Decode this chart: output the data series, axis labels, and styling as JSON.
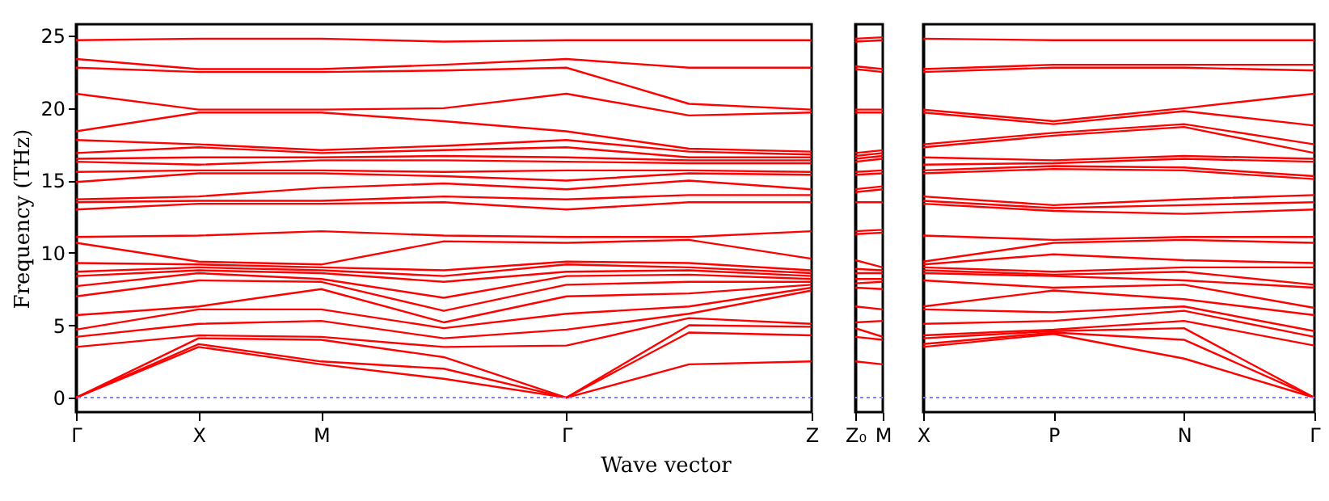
{
  "chart_data": [
    {
      "type": "line",
      "ylabel": "Frequency (THz)",
      "xlabel": "Wave vector",
      "categories": [
        "Γ",
        "X",
        "M",
        null,
        "Γ",
        null,
        "Z"
      ],
      "ylim": [
        -1,
        25.8
      ],
      "yticks": [
        0,
        5,
        10,
        15,
        20,
        25
      ],
      "ref_lines": [
        {
          "axis": "y",
          "value": 0,
          "color": "#8080ff",
          "line_style": "dotted"
        }
      ],
      "series": [
        {
          "color": "#ff0000",
          "values": [
            0,
            3.5,
            2.3,
            1.3,
            0,
            2.3,
            2.5
          ]
        },
        {
          "color": "#ff0000",
          "values": [
            0,
            3.7,
            2.5,
            2.0,
            0,
            4.5,
            4.3
          ]
        },
        {
          "color": "#ff0000",
          "values": [
            0,
            4.1,
            4.0,
            2.8,
            0,
            5.0,
            4.9
          ]
        },
        {
          "color": "#ff0000",
          "values": [
            3.5,
            4.3,
            4.2,
            3.5,
            3.6,
            5.5,
            5.1
          ]
        },
        {
          "color": "#ff0000",
          "values": [
            4.2,
            5.1,
            5.3,
            4.1,
            4.7,
            5.8,
            7.4
          ]
        },
        {
          "color": "#ff0000",
          "values": [
            4.7,
            6.1,
            6.1,
            4.8,
            5.8,
            6.3,
            7.6
          ]
        },
        {
          "color": "#ff0000",
          "values": [
            5.7,
            6.3,
            7.5,
            5.2,
            7.0,
            7.2,
            7.8
          ]
        },
        {
          "color": "#ff0000",
          "values": [
            7.0,
            8.1,
            8.0,
            6.0,
            7.8,
            8.0,
            8.0
          ]
        },
        {
          "color": "#ff0000",
          "values": [
            7.7,
            8.6,
            8.2,
            6.9,
            8.4,
            8.5,
            8.2
          ]
        },
        {
          "color": "#ff0000",
          "values": [
            8.4,
            8.8,
            8.6,
            8.0,
            8.7,
            8.8,
            8.4
          ]
        },
        {
          "color": "#ff0000",
          "values": [
            8.7,
            9.0,
            8.8,
            8.4,
            9.2,
            9.0,
            8.6
          ]
        },
        {
          "color": "#ff0000",
          "values": [
            9.3,
            9.2,
            9.0,
            8.8,
            9.4,
            9.3,
            8.8
          ]
        },
        {
          "color": "#ff0000",
          "values": [
            10.7,
            9.4,
            9.2,
            10.8,
            10.7,
            10.9,
            9.6
          ]
        },
        {
          "color": "#ff0000",
          "values": [
            11.1,
            11.2,
            11.5,
            11.2,
            11.1,
            11.1,
            11.5
          ]
        },
        {
          "color": "#ff0000",
          "values": [
            13.0,
            13.4,
            13.4,
            13.5,
            13.0,
            13.5,
            13.5
          ]
        },
        {
          "color": "#ff0000",
          "values": [
            13.5,
            13.6,
            13.6,
            13.9,
            13.7,
            14.0,
            14.0
          ]
        },
        {
          "color": "#ff0000",
          "values": [
            13.7,
            13.9,
            14.5,
            14.8,
            14.4,
            15.0,
            14.4
          ]
        },
        {
          "color": "#ff0000",
          "values": [
            14.9,
            15.5,
            15.5,
            15.3,
            15.0,
            15.5,
            15.4
          ]
        },
        {
          "color": "#ff0000",
          "values": [
            15.6,
            15.7,
            15.7,
            15.6,
            15.7,
            15.7,
            15.6
          ]
        },
        {
          "color": "#ff0000",
          "values": [
            16.3,
            16.1,
            16.4,
            16.4,
            16.3,
            16.2,
            16.2
          ]
        },
        {
          "color": "#ff0000",
          "values": [
            16.5,
            16.6,
            16.6,
            16.7,
            16.6,
            16.4,
            16.4
          ]
        },
        {
          "color": "#ff0000",
          "values": [
            16.9,
            17.3,
            16.9,
            17.1,
            17.3,
            16.6,
            16.6
          ]
        },
        {
          "color": "#ff0000",
          "values": [
            17.8,
            17.5,
            17.1,
            17.4,
            17.8,
            17.0,
            16.8
          ]
        },
        {
          "color": "#ff0000",
          "values": [
            18.4,
            19.7,
            19.7,
            19.1,
            18.4,
            17.2,
            17.0
          ]
        },
        {
          "color": "#ff0000",
          "values": [
            21.0,
            19.9,
            19.9,
            20.0,
            21.0,
            19.5,
            19.7
          ]
        },
        {
          "color": "#ff0000",
          "values": [
            22.8,
            22.5,
            22.5,
            22.6,
            22.8,
            20.3,
            19.9
          ]
        },
        {
          "color": "#ff0000",
          "values": [
            23.4,
            22.7,
            22.7,
            23.0,
            23.4,
            22.8,
            22.8
          ]
        },
        {
          "color": "#ff0000",
          "values": [
            24.7,
            24.8,
            24.8,
            24.6,
            24.7,
            24.7,
            24.7
          ]
        }
      ]
    },
    {
      "type": "line",
      "tick_labels": "x",
      "categories": [
        "Z₀",
        "M"
      ],
      "ylim": [
        -1,
        25.8
      ],
      "yticks": [
        0,
        5,
        10,
        15,
        20,
        25
      ],
      "ref_lines": [
        {
          "axis": "y",
          "value": 0,
          "color": "#8080ff",
          "line_style": "dotted"
        }
      ],
      "series": [
        {
          "color": "#ff0000",
          "values": [
            2.5,
            2.3
          ]
        },
        {
          "color": "#ff0000",
          "values": [
            4.2,
            4.0
          ]
        },
        {
          "color": "#ff0000",
          "values": [
            4.8,
            4.2
          ]
        },
        {
          "color": "#ff0000",
          "values": [
            5.2,
            5.3
          ]
        },
        {
          "color": "#ff0000",
          "values": [
            6.3,
            6.1
          ]
        },
        {
          "color": "#ff0000",
          "values": [
            7.6,
            7.5
          ]
        },
        {
          "color": "#ff0000",
          "values": [
            7.9,
            8.0
          ]
        },
        {
          "color": "#ff0000",
          "values": [
            8.2,
            8.2
          ]
        },
        {
          "color": "#ff0000",
          "values": [
            8.6,
            8.6
          ]
        },
        {
          "color": "#ff0000",
          "values": [
            8.9,
            8.8
          ]
        },
        {
          "color": "#ff0000",
          "values": [
            9.5,
            9.0
          ]
        },
        {
          "color": "#ff0000",
          "values": [
            11.3,
            11.4
          ]
        },
        {
          "color": "#ff0000",
          "values": [
            11.5,
            11.6
          ]
        },
        {
          "color": "#ff0000",
          "values": [
            13.5,
            13.5
          ]
        },
        {
          "color": "#ff0000",
          "values": [
            14.2,
            14.4
          ]
        },
        {
          "color": "#ff0000",
          "values": [
            14.4,
            14.6
          ]
        },
        {
          "color": "#ff0000",
          "values": [
            15.4,
            15.5
          ]
        },
        {
          "color": "#ff0000",
          "values": [
            15.6,
            15.7
          ]
        },
        {
          "color": "#ff0000",
          "values": [
            16.3,
            16.5
          ]
        },
        {
          "color": "#ff0000",
          "values": [
            16.5,
            16.7
          ]
        },
        {
          "color": "#ff0000",
          "values": [
            16.7,
            16.9
          ]
        },
        {
          "color": "#ff0000",
          "values": [
            16.9,
            17.1
          ]
        },
        {
          "color": "#ff0000",
          "values": [
            19.7,
            19.7
          ]
        },
        {
          "color": "#ff0000",
          "values": [
            19.9,
            19.9
          ]
        },
        {
          "color": "#ff0000",
          "values": [
            22.7,
            22.5
          ]
        },
        {
          "color": "#ff0000",
          "values": [
            22.9,
            22.7
          ]
        },
        {
          "color": "#ff0000",
          "values": [
            24.6,
            24.7
          ]
        },
        {
          "color": "#ff0000",
          "values": [
            24.8,
            24.9
          ]
        }
      ]
    },
    {
      "type": "line",
      "tick_labels": "x",
      "categories": [
        "X",
        "P",
        "N",
        "Γ"
      ],
      "ylim": [
        -1,
        25.8
      ],
      "yticks": [
        0,
        5,
        10,
        15,
        20,
        25
      ],
      "ref_lines": [
        {
          "axis": "y",
          "value": 0,
          "color": "#8080ff",
          "line_style": "dotted"
        }
      ],
      "series": [
        {
          "color": "#ff0000",
          "values": [
            3.5,
            4.4,
            2.7,
            0
          ]
        },
        {
          "color": "#ff0000",
          "values": [
            3.7,
            4.5,
            4.0,
            0
          ]
        },
        {
          "color": "#ff0000",
          "values": [
            4.1,
            4.6,
            4.8,
            0
          ]
        },
        {
          "color": "#ff0000",
          "values": [
            4.3,
            4.7,
            5.3,
            3.6
          ]
        },
        {
          "color": "#ff0000",
          "values": [
            5.1,
            5.3,
            6.0,
            4.2
          ]
        },
        {
          "color": "#ff0000",
          "values": [
            6.1,
            5.9,
            6.3,
            4.6
          ]
        },
        {
          "color": "#ff0000",
          "values": [
            6.3,
            7.4,
            6.8,
            5.7
          ]
        },
        {
          "color": "#ff0000",
          "values": [
            8.1,
            7.6,
            7.8,
            6.2
          ]
        },
        {
          "color": "#ff0000",
          "values": [
            8.6,
            8.4,
            8.1,
            7.6
          ]
        },
        {
          "color": "#ff0000",
          "values": [
            8.8,
            8.5,
            8.7,
            7.8
          ]
        },
        {
          "color": "#ff0000",
          "values": [
            9.0,
            8.7,
            9.0,
            9.0
          ]
        },
        {
          "color": "#ff0000",
          "values": [
            9.2,
            9.9,
            9.5,
            9.3
          ]
        },
        {
          "color": "#ff0000",
          "values": [
            9.4,
            10.7,
            10.9,
            10.7
          ]
        },
        {
          "color": "#ff0000",
          "values": [
            11.2,
            10.9,
            11.1,
            11.1
          ]
        },
        {
          "color": "#ff0000",
          "values": [
            13.4,
            12.9,
            12.7,
            13.0
          ]
        },
        {
          "color": "#ff0000",
          "values": [
            13.6,
            13.1,
            13.3,
            13.5
          ]
        },
        {
          "color": "#ff0000",
          "values": [
            13.9,
            13.3,
            13.7,
            14.0
          ]
        },
        {
          "color": "#ff0000",
          "values": [
            15.5,
            15.8,
            15.7,
            15.1
          ]
        },
        {
          "color": "#ff0000",
          "values": [
            15.7,
            16.0,
            15.9,
            15.3
          ]
        },
        {
          "color": "#ff0000",
          "values": [
            16.1,
            16.2,
            16.5,
            16.3
          ]
        },
        {
          "color": "#ff0000",
          "values": [
            16.6,
            16.4,
            16.7,
            16.5
          ]
        },
        {
          "color": "#ff0000",
          "values": [
            17.3,
            18.1,
            18.7,
            16.9
          ]
        },
        {
          "color": "#ff0000",
          "values": [
            17.5,
            18.3,
            18.9,
            17.5
          ]
        },
        {
          "color": "#ff0000",
          "values": [
            19.7,
            18.9,
            19.8,
            18.8
          ]
        },
        {
          "color": "#ff0000",
          "values": [
            19.9,
            19.1,
            20.0,
            21.0
          ]
        },
        {
          "color": "#ff0000",
          "values": [
            22.5,
            22.8,
            22.8,
            22.6
          ]
        },
        {
          "color": "#ff0000",
          "values": [
            22.7,
            23.0,
            23.0,
            23.0
          ]
        },
        {
          "color": "#ff0000",
          "values": [
            24.8,
            24.7,
            24.7,
            24.7
          ]
        }
      ]
    }
  ]
}
